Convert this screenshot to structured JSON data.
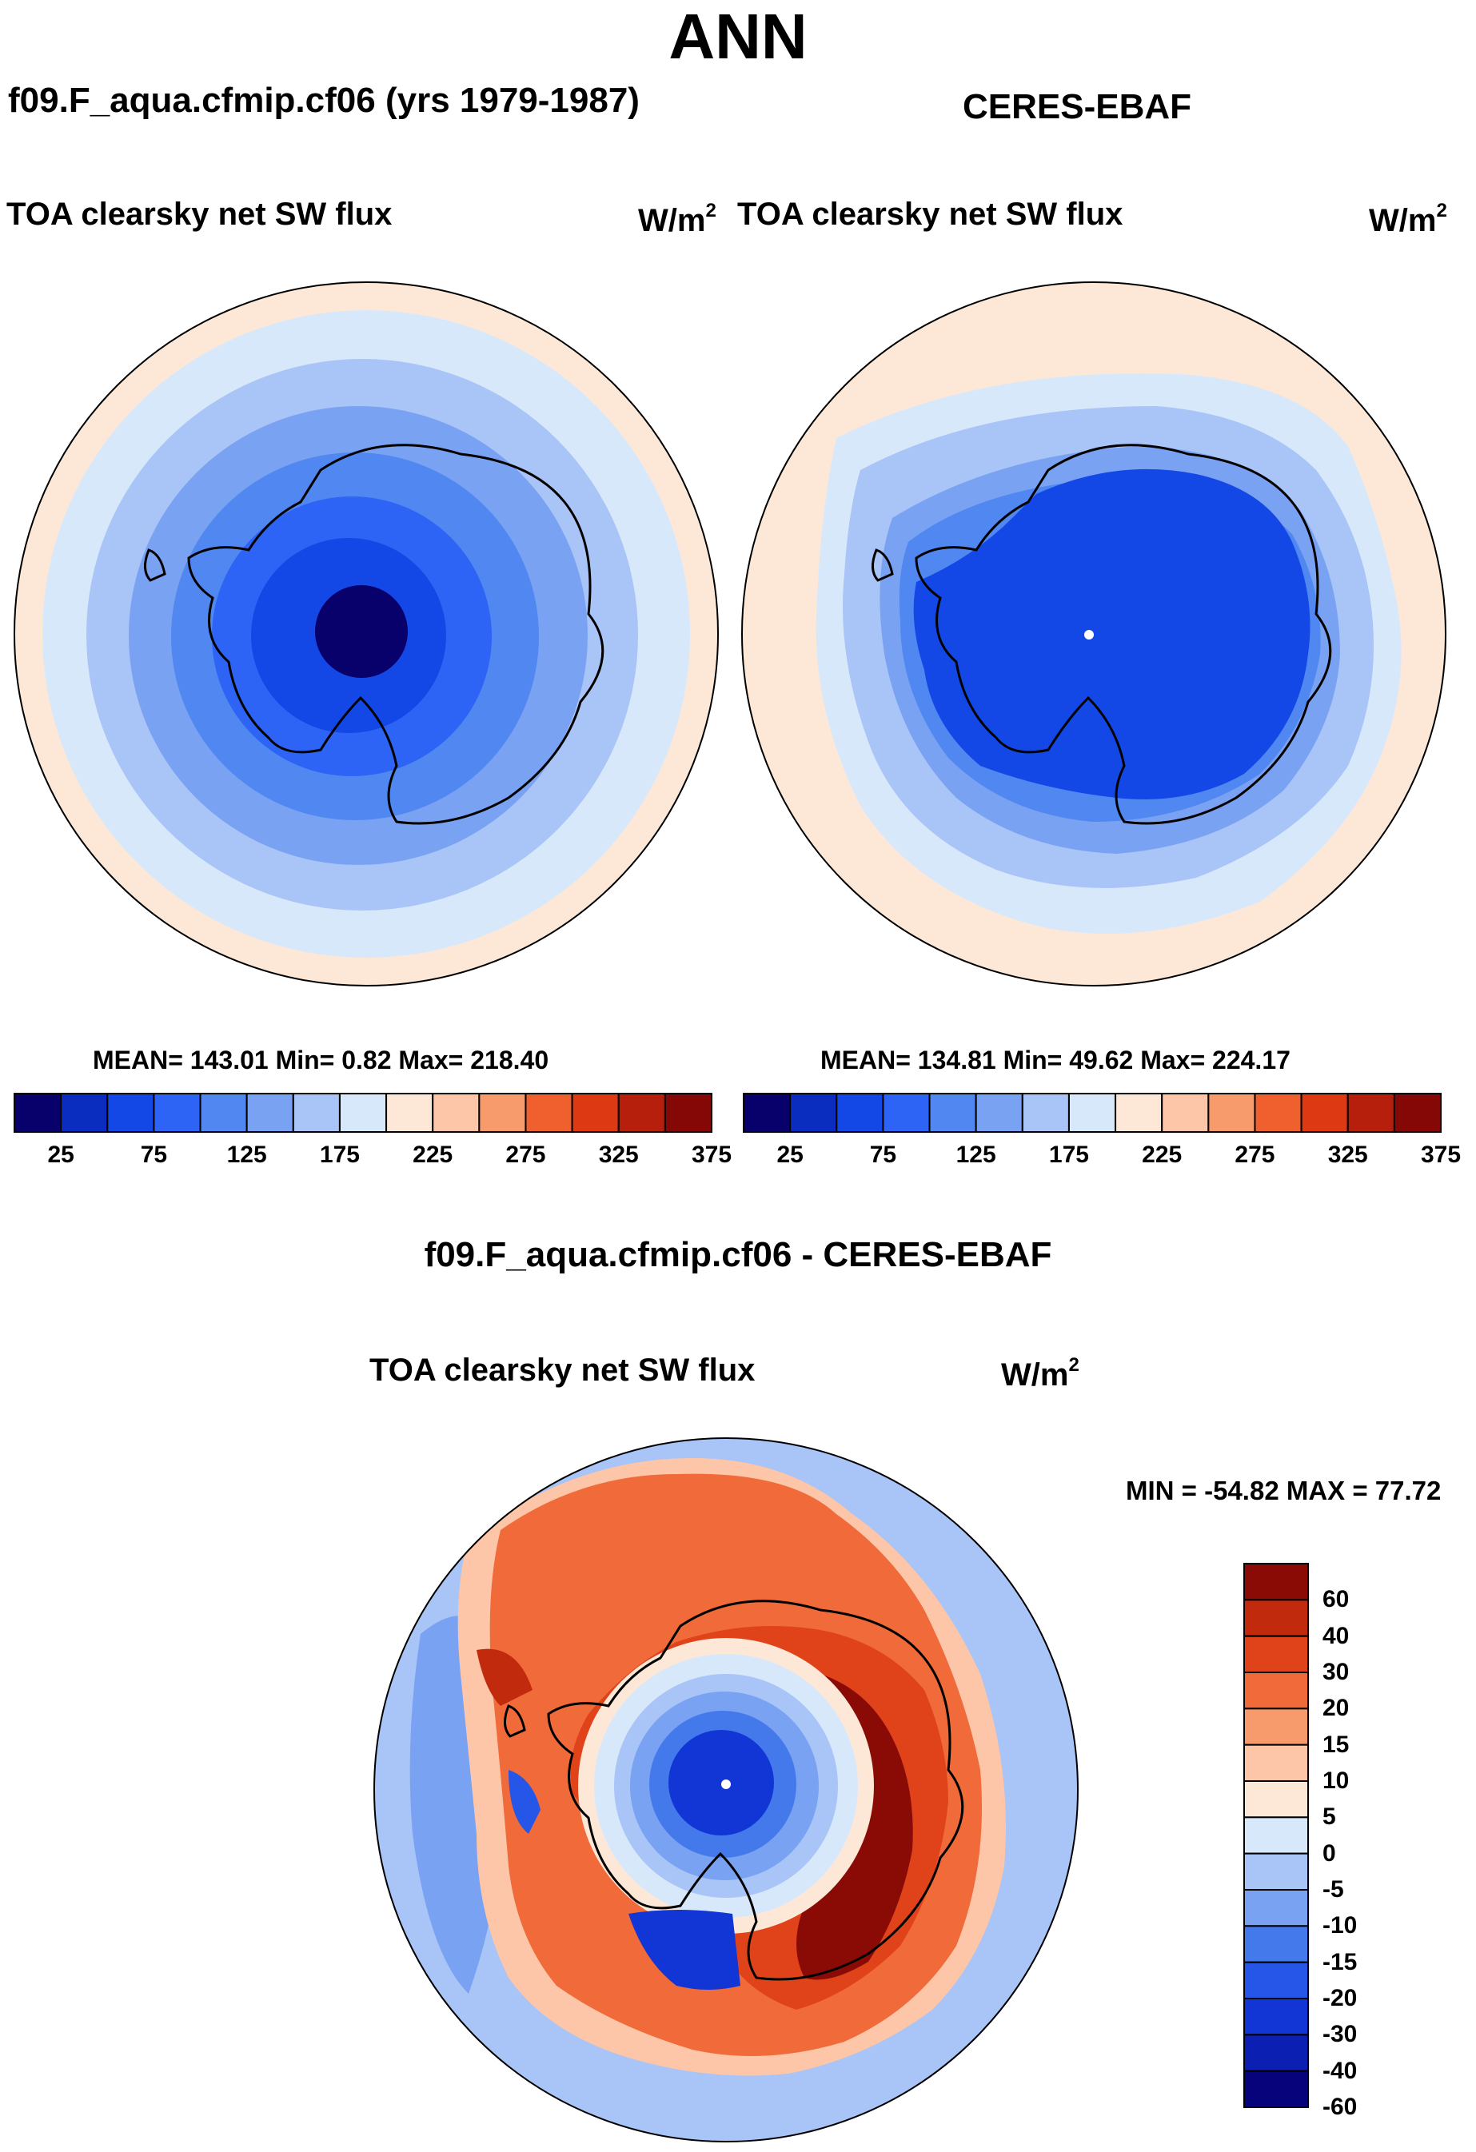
{
  "figure": {
    "season": "ANN",
    "colors": {
      "abs_levels": [
        "#08006b",
        "#0a2dbf",
        "#1448e6",
        "#2d64f5",
        "#5087f0",
        "#7aa2f2",
        "#a9c4f6",
        "#d8e8fb",
        "#fde8d8",
        "#fdc6a8",
        "#f79a6c",
        "#f0602f",
        "#dd3a13",
        "#b51f0c",
        "#850806"
      ],
      "diff_levels": [
        "#07037a",
        "#0b1fb3",
        "#1235d6",
        "#2656e8",
        "#4479ec",
        "#7aa2f2",
        "#a9c4f6",
        "#d8e8fb",
        "#fde8d8",
        "#fdc6a8",
        "#f79a6c",
        "#f06a3a",
        "#e0431a",
        "#c12a0c",
        "#8a0b06"
      ]
    }
  },
  "panel_model": {
    "case_title": "f09.F_aqua.cfmip.cf06 (yrs 1979-1987)",
    "variable": "TOA clearsky net SW flux",
    "units": "W/m",
    "units_exp": "2",
    "stats": "MEAN= 143.01  Min=   0.82  Max= 218.40"
  },
  "panel_obs": {
    "case_title": "CERES-EBAF",
    "variable": "TOA clearsky net SW flux",
    "units": "W/m",
    "units_exp": "2",
    "stats": "MEAN= 134.81  Min=  49.62  Max= 224.17"
  },
  "panel_diff": {
    "case_title": "f09.F_aqua.cfmip.cf06 - CERES-EBAF",
    "variable": "TOA clearsky net SW flux",
    "units": "W/m",
    "units_exp": "2",
    "minmax": "MIN = -54.82 MAX =  77.72"
  },
  "chart_data": [
    {
      "type": "heatmap",
      "projection": "south polar stereographic",
      "title": "f09.F_aqua.cfmip.cf06 (yrs 1979-1987)",
      "variable": "TOA clearsky net SW flux",
      "units": "W/m2",
      "mean": 143.01,
      "min": 0.82,
      "max": 218.4,
      "colorbar_labels": [
        "25",
        "75",
        "125",
        "175",
        "225",
        "275",
        "325",
        "375"
      ],
      "contour_levels": [
        25,
        50,
        75,
        100,
        125,
        150,
        175,
        200,
        225,
        250,
        275,
        300,
        325,
        350,
        375
      ]
    },
    {
      "type": "heatmap",
      "projection": "south polar stereographic",
      "title": "CERES-EBAF",
      "variable": "TOA clearsky net SW flux",
      "units": "W/m2",
      "mean": 134.81,
      "min": 49.62,
      "max": 224.17,
      "colorbar_labels": [
        "25",
        "75",
        "125",
        "175",
        "225",
        "275",
        "325",
        "375"
      ],
      "contour_levels": [
        25,
        50,
        75,
        100,
        125,
        150,
        175,
        200,
        225,
        250,
        275,
        300,
        325,
        350,
        375
      ]
    },
    {
      "type": "heatmap",
      "projection": "south polar stereographic",
      "title": "f09.F_aqua.cfmip.cf06 - CERES-EBAF",
      "variable": "TOA clearsky net SW flux",
      "units": "W/m2",
      "min": -54.82,
      "max": 77.72,
      "colorbar_labels": [
        "60",
        "40",
        "30",
        "20",
        "15",
        "10",
        "5",
        "0",
        "-5",
        "-10",
        "-15",
        "-20",
        "-30",
        "-40",
        "-60"
      ],
      "contour_levels": [
        -60,
        -40,
        -30,
        -20,
        -15,
        -10,
        -5,
        0,
        5,
        10,
        15,
        20,
        30,
        40,
        60
      ]
    }
  ]
}
